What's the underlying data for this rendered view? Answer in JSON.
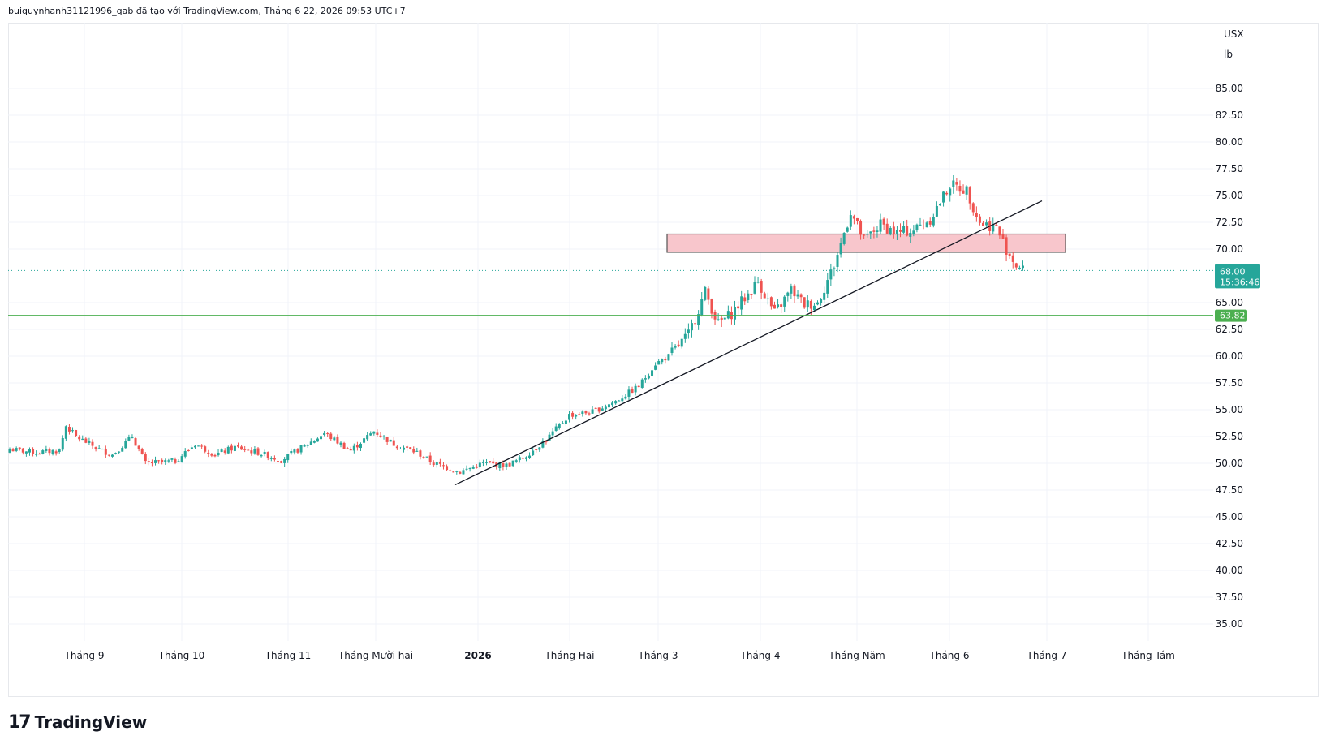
{
  "header": {
    "text": "buiquynhanh31121996_qab đã tạo với TradingView.com, Tháng 6 22, 2026 09:53 UTC+7"
  },
  "price_scale": {
    "currency": "USX",
    "unit": "lb"
  },
  "brand": {
    "logo": "17",
    "name": "TradingView"
  },
  "colors": {
    "up": "#26a69a",
    "down": "#ef5350",
    "zone_fill": "#f8c6cc",
    "support_line": "#4caf50",
    "price_tag": "#26a69a"
  },
  "chart_data": {
    "type": "candlestick",
    "y_ticks": [
      "85.00",
      "82.50",
      "80.00",
      "77.50",
      "75.00",
      "72.50",
      "70.00",
      "65.00",
      "62.50",
      "60.00",
      "57.50",
      "55.00",
      "52.50",
      "50.00",
      "47.50",
      "45.00",
      "42.50",
      "40.00",
      "37.50",
      "35.00"
    ],
    "x_ticks": [
      "Tháng 9",
      "Tháng 10",
      "Tháng 11",
      "Tháng Mười hai",
      "2026",
      "Tháng Hai",
      "Tháng 3",
      "Tháng 4",
      "Tháng Năm",
      "Tháng 6",
      "Tháng 7",
      "Tháng Tám"
    ],
    "last_price": {
      "value": "68.00",
      "countdown": "15:36:46"
    },
    "support_level": {
      "value": "63.82"
    },
    "resistance_zone": {
      "from": 69.7,
      "to": 71.4
    },
    "trendline": {
      "start": [
        "Tháng Mười hai",
        48.0
      ],
      "end": [
        "Tháng 7",
        74.5
      ]
    },
    "close_path": [
      [
        0,
        51.3
      ],
      [
        8,
        51.0
      ],
      [
        15,
        51.2
      ],
      [
        17,
        53.5
      ],
      [
        20,
        52.5
      ],
      [
        27,
        51.3
      ],
      [
        31,
        50.8
      ],
      [
        37,
        52.5
      ],
      [
        41,
        50.0
      ],
      [
        50,
        50.2
      ],
      [
        56,
        51.8
      ],
      [
        62,
        50.8
      ],
      [
        68,
        51.5
      ],
      [
        75,
        51.0
      ],
      [
        82,
        50.3
      ],
      [
        90,
        51.8
      ],
      [
        95,
        52.8
      ],
      [
        103,
        51.2
      ],
      [
        110,
        53.0
      ],
      [
        116,
        51.8
      ],
      [
        123,
        51.0
      ],
      [
        128,
        50.0
      ],
      [
        136,
        49.2
      ],
      [
        143,
        50.0
      ],
      [
        150,
        49.8
      ],
      [
        155,
        50.5
      ],
      [
        162,
        52.2
      ],
      [
        169,
        54.5
      ],
      [
        176,
        54.8
      ],
      [
        183,
        55.8
      ],
      [
        190,
        57.2
      ],
      [
        195,
        59.3
      ],
      [
        199,
        60.0
      ],
      [
        205,
        62.0
      ],
      [
        210,
        66.0
      ],
      [
        214,
        63.0
      ],
      [
        218,
        64.0
      ],
      [
        223,
        65.8
      ],
      [
        226,
        67.0
      ],
      [
        231,
        64.0
      ],
      [
        236,
        66.2
      ],
      [
        240,
        64.8
      ],
      [
        244,
        65.0
      ],
      [
        249,
        68.5
      ],
      [
        254,
        73.5
      ],
      [
        258,
        70.8
      ],
      [
        263,
        72.3
      ],
      [
        268,
        71.5
      ],
      [
        273,
        71.8
      ],
      [
        278,
        72.8
      ],
      [
        284,
        76.0
      ],
      [
        289,
        75.5
      ],
      [
        293,
        72.5
      ],
      [
        298,
        72.0
      ],
      [
        301,
        70.0
      ],
      [
        304,
        68.5
      ],
      [
        306,
        68.0
      ]
    ]
  }
}
